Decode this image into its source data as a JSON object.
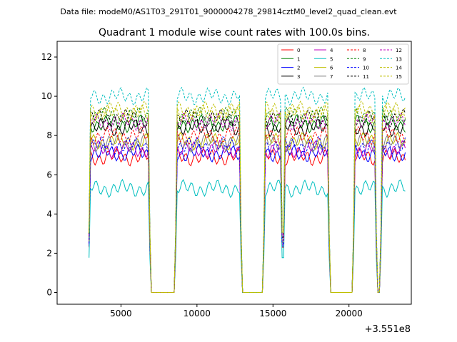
{
  "figure": {
    "suptitle": "Data file: modeM0/AS1T03_291T01_9000004278_29814cztM0_level2_quad_clean.evt"
  },
  "chart_data": {
    "type": "line",
    "title": "Quadrant 1 module wise count rates with 100.0s bins.",
    "xlabel": "",
    "ylabel": "",
    "x_offset_label": "+3.551e8",
    "xlim": [
      800,
      24100
    ],
    "ylim": [
      -0.6,
      12.8
    ],
    "x_ticks": [
      5000,
      10000,
      15000,
      20000
    ],
    "x_tick_labels": [
      "5000",
      "10000",
      "15000",
      "20000"
    ],
    "y_ticks": [
      0,
      2,
      4,
      6,
      8,
      10,
      12
    ],
    "y_tick_labels": [
      "0",
      "2",
      "4",
      "6",
      "8",
      "10",
      "12"
    ],
    "grid": false,
    "legend_position": "top-right",
    "legend_columns": 4,
    "on_intervals": [
      [
        3000,
        6800
      ],
      [
        8700,
        12800
      ],
      [
        14500,
        15500
      ],
      [
        15800,
        18600
      ],
      [
        20400,
        21700
      ],
      [
        22200,
        23700
      ]
    ],
    "series": [
      {
        "name": "0",
        "color": "#ff0000",
        "style": "solid",
        "level": 6.9
      },
      {
        "name": "1",
        "color": "#008000",
        "style": "solid",
        "level": 8.6
      },
      {
        "name": "2",
        "color": "#0000ff",
        "style": "solid",
        "level": 7.1
      },
      {
        "name": "3",
        "color": "#000000",
        "style": "solid",
        "level": 8.4
      },
      {
        "name": "4",
        "color": "#bf00bf",
        "style": "solid",
        "level": 7.3
      },
      {
        "name": "5",
        "color": "#00bfbf",
        "style": "solid",
        "level": 5.3
      },
      {
        "name": "6",
        "color": "#bfbf00",
        "style": "solid",
        "level": 7.7
      },
      {
        "name": "7",
        "color": "#808080",
        "style": "solid",
        "level": 7.6
      },
      {
        "name": "8",
        "color": "#ff0000",
        "style": "dashed",
        "level": 8.0
      },
      {
        "name": "9",
        "color": "#008000",
        "style": "dashed",
        "level": 9.0
      },
      {
        "name": "10",
        "color": "#0000ff",
        "style": "dashed",
        "level": 7.5
      },
      {
        "name": "11",
        "color": "#000000",
        "style": "dashed",
        "level": 8.9
      },
      {
        "name": "12",
        "color": "#bf00bf",
        "style": "dashed",
        "level": 8.7
      },
      {
        "name": "13",
        "color": "#00bfbf",
        "style": "dashed",
        "level": 10.0
      },
      {
        "name": "14",
        "color": "#bfbf00",
        "style": "dashed",
        "level": 9.3
      },
      {
        "name": "15",
        "color": "#bfbf00",
        "style": "dashed",
        "level": 9.1
      }
    ]
  }
}
